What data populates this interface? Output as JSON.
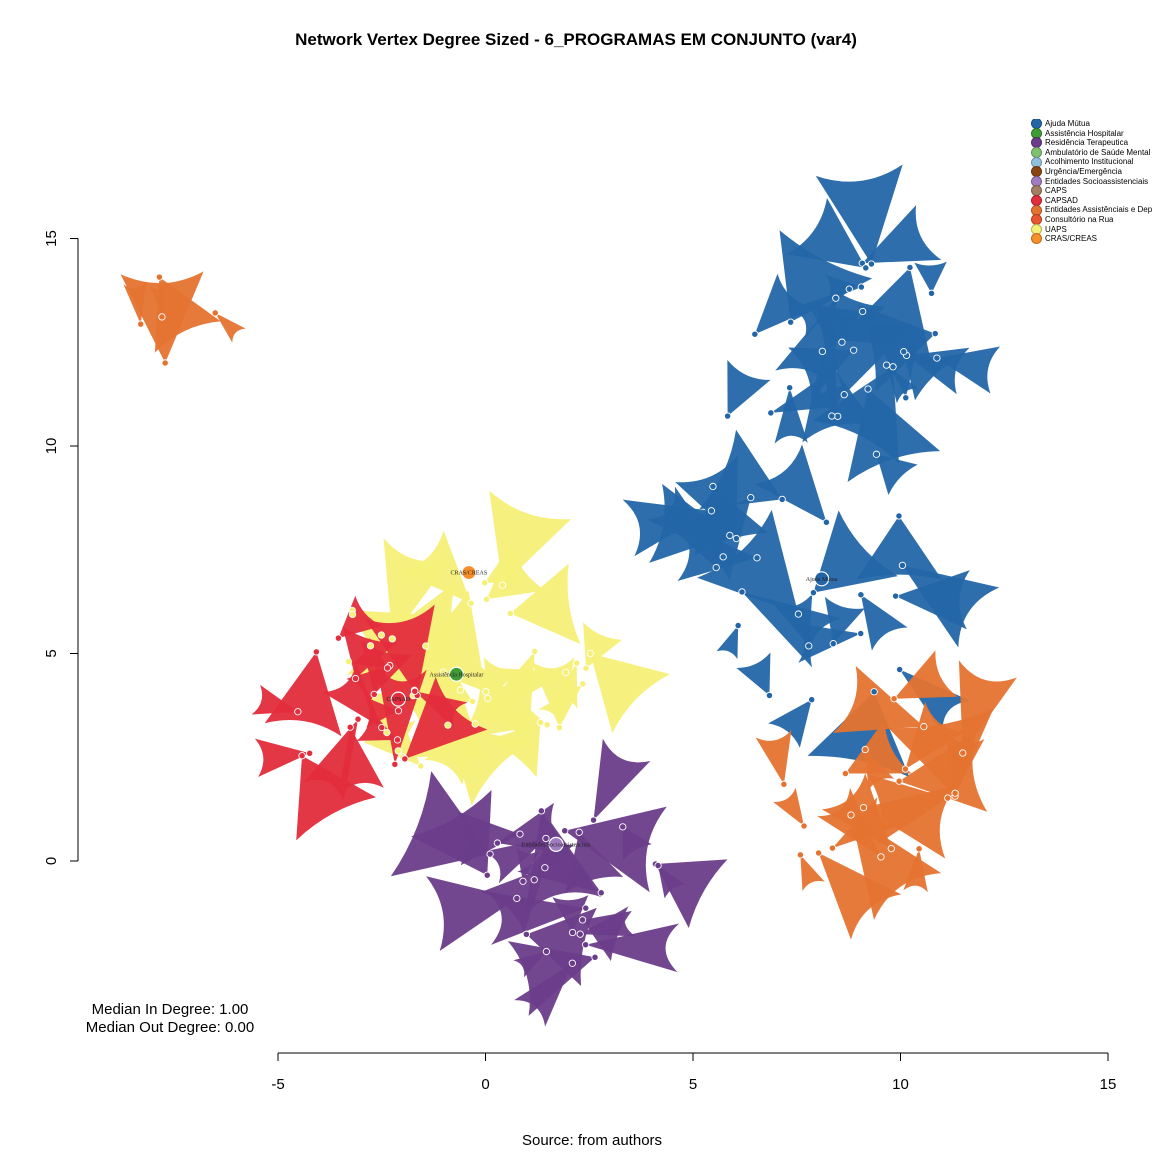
{
  "title": "Network Vertex Degree Sized - 6_PROGRAMAS EM CONJUNTO (var4)",
  "source": "Source: from authors",
  "stats": {
    "median_in": "Median In Degree: 1.00",
    "median_out": "Median Out Degree: 0.00"
  },
  "legend": [
    {
      "label": "Ajuda Mútua",
      "color": "#2366a8"
    },
    {
      "label": "Assistência Hospitalar",
      "color": "#3f9c35"
    },
    {
      "label": "Residência Terapeutica",
      "color": "#6a3d8a"
    },
    {
      "label": "Ambulatório de Saúde Mental",
      "color": "#80c070"
    },
    {
      "label": "Acolhimento Institucional",
      "color": "#92c0db"
    },
    {
      "label": "Urgência/Emergência",
      "color": "#8b4513"
    },
    {
      "label": "Entidades Socioassistenciais",
      "color": "#a07cc0"
    },
    {
      "label": "CAPS",
      "color": "#a08060"
    },
    {
      "label": "CAPSAD",
      "color": "#e32c3c"
    },
    {
      "label": "Entidades Assistênciais e Dependência Química e CT",
      "color": "#e57330"
    },
    {
      "label": "Consultório na Rua",
      "color": "#e85530"
    },
    {
      "label": "UAPS",
      "color": "#f5f078"
    },
    {
      "label": "CRAS/CREAS",
      "color": "#f7902b"
    }
  ],
  "chart_data": {
    "type": "network",
    "title": "Network Vertex Degree Sized - 6_PROGRAMAS EM CONJUNTO (var4)",
    "xlim": [
      -5,
      15
    ],
    "ylim": [
      -4.5,
      17.5
    ],
    "xticks": [
      -5,
      0,
      5,
      10,
      15
    ],
    "yticks": [
      0,
      5,
      10,
      15
    ],
    "grid": false,
    "legend_position": "top-right",
    "labeled_nodes": [
      {
        "label": "Ajuda Mútua",
        "x": 8.1,
        "y": 6.8,
        "group": "Ajuda Mútua"
      },
      {
        "label": "Assistência Hospitalar",
        "x": -0.7,
        "y": 4.5,
        "group": "Assistência Hospitalar"
      },
      {
        "label": "CAPSAD",
        "x": -2.1,
        "y": 3.9,
        "group": "CAPSAD"
      },
      {
        "label": "CRAS/CREAS",
        "x": -0.4,
        "y": 6.95,
        "group": "CRAS/CREAS"
      },
      {
        "label": "Entidades Socioassistenciais",
        "x": 1.7,
        "y": 0.4,
        "group": "Entidades Socioassistenciais"
      }
    ],
    "clusters": [
      {
        "group": "Ajuda Mútua",
        "color": "#2366a8",
        "cx": 8.5,
        "cy": 8.6,
        "rx": 3.1,
        "ry": 5.8,
        "n": 40,
        "node_radius": 0.06
      },
      {
        "group": "Ajuda Mútua",
        "color": "#2366a8",
        "cx": 9.6,
        "cy": 12.8,
        "rx": 1.4,
        "ry": 1.8,
        "n": 14,
        "node_radius": 0.06
      },
      {
        "group": "Entidades Assistênciais e Dependência Química e CT",
        "color": "#e57330",
        "cx": 9.2,
        "cy": 1.9,
        "rx": 2.4,
        "ry": 2.6,
        "n": 20,
        "node_radius": 0.06
      },
      {
        "group": "Residência Terapeutica",
        "color": "#6a3d8a",
        "cx": 2.0,
        "cy": -0.6,
        "rx": 2.3,
        "ry": 2.0,
        "n": 26,
        "node_radius": 0.06
      },
      {
        "group": "UAPS",
        "color": "#f5f078",
        "cx": -0.6,
        "cy": 4.8,
        "rx": 3.2,
        "ry": 2.7,
        "n": 34,
        "node_radius": 0.06
      },
      {
        "group": "CAPSAD",
        "color": "#e32c3c",
        "cx": -3.2,
        "cy": 3.6,
        "rx": 1.6,
        "ry": 2.4,
        "n": 18,
        "node_radius": 0.06
      },
      {
        "group": "Entidades Assistênciais e Dependência Química e CT",
        "color": "#e57330",
        "cx": -7.3,
        "cy": 13.0,
        "rx": 1.1,
        "ry": 1.4,
        "n": 5,
        "node_radius": 0.06
      }
    ]
  }
}
